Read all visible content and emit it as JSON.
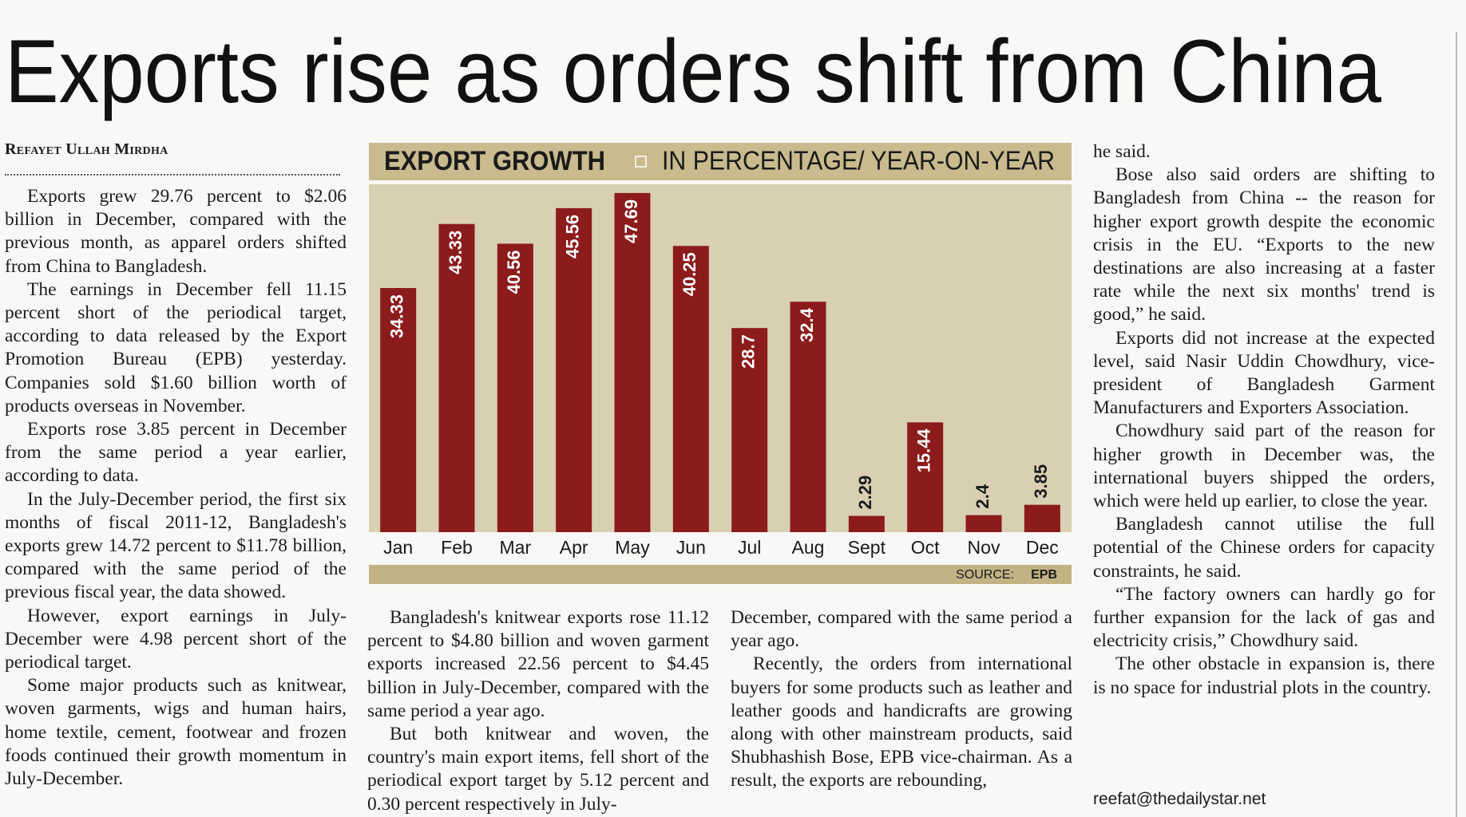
{
  "headline": "Exports rise as orders shift from China",
  "byline": "Refayet Ullah Mirdha",
  "columns": [
    {
      "paragraphs": [
        "Exports grew 29.76 percent to $2.06 billion in December, compared with the previous month, as apparel orders shifted from China to Bangladesh.",
        "The earnings in December fell 11.15 percent short of the periodical target, according to data released by the Export Promotion Bureau (EPB) yesterday. Companies sold $1.60 billion worth of products overseas in November.",
        "Exports rose 3.85 percent in December from the same period a year earlier, according to data.",
        "In the July-December period, the first six months of fiscal 2011-12, Bangladesh's exports grew 14.72 percent to $11.78 billion, compared with the same period of the previous fiscal year, the data showed.",
        "However, export earnings in July-December were 4.98 percent short of the periodical target.",
        "Some major products such as knitwear, woven garments, wigs and human hairs, home textile, cement, footwear and frozen foods continued their growth momentum in July-December."
      ]
    },
    {
      "paragraphs": [
        "Bangladesh's knitwear exports rose 11.12 percent to $4.80 billion and woven garment exports increased 22.56 percent to $4.45 billion in July-December, compared with the same period a year ago.",
        "But both knitwear and woven, the country's main export items, fell short of the periodical export target by 5.12 percent and 0.30 percent respectively in July-"
      ]
    },
    {
      "paragraphs": [
        "December, compared with the same period a year ago.",
        "Recently, the orders from international buyers for some products such as leather and leather goods and handicrafts are growing along with other mainstream products, said Shubhashish Bose, EPB vice-chairman. As a result, the exports are rebounding,"
      ]
    },
    {
      "paragraphs": [
        "he said.",
        "Bose also said orders are shifting to Bangladesh from China -- the reason for higher export growth despite the economic crisis in the EU. “Exports to the new destinations are also increasing at a faster rate while the next six months' trend is good,” he said.",
        "Exports did not increase at the expected level, said Nasir Uddin Chowdhury, vice-president of Bangladesh Garment Manufacturers and Exporters Association.",
        "Chowdhury said part of the reason for higher growth in December was, the international buyers shipped the orders, which were held up earlier, to close the year.",
        "Bangladesh cannot utilise the full potential of the Chinese orders for capacity constraints, he said.",
        "“The factory owners can hardly go for further expansion for the lack of gas and electricity crisis,” Chowdhury said.",
        "The other obstacle in expansion is, there is no space for industrial plots in the country."
      ]
    }
  ],
  "email": "reefat@thedailystar.net",
  "chart_data": {
    "type": "bar",
    "title": "EXPORT GROWTH",
    "subtitle": "IN PERCENTAGE/ YEAR-ON-YEAR",
    "categories": [
      "Jan",
      "Feb",
      "Mar",
      "Apr",
      "May",
      "Jun",
      "Jul",
      "Aug",
      "Sept",
      "Oct",
      "Nov",
      "Dec"
    ],
    "values": [
      34.33,
      43.33,
      40.56,
      45.56,
      47.69,
      40.25,
      28.7,
      32.4,
      2.29,
      15.44,
      2.4,
      3.85
    ],
    "color": "#8c1b1b",
    "source_label": "SOURCE:",
    "source": "EPB"
  }
}
